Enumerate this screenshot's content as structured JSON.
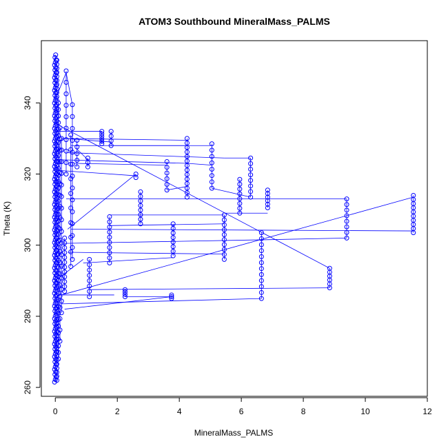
{
  "chart_data": {
    "type": "scatter",
    "title": "ATOM3 Southbound MineralMass_PALMS",
    "xlabel": "MineralMass_PALMS",
    "ylabel": "Theta (K)",
    "xlim": [
      -0.45,
      12.0
    ],
    "ylim": [
      257.5,
      357.5
    ],
    "x_ticks": [
      0,
      2,
      4,
      6,
      8,
      10,
      12
    ],
    "y_ticks": [
      260,
      280,
      300,
      320,
      340
    ],
    "grid": false,
    "series_color": "#0000ff",
    "marker": "open-circle",
    "connected": true,
    "clusters": [
      {
        "x": 0.0,
        "ymin": 261.5,
        "ymax": 353.5,
        "n": 130
      },
      {
        "x": 0.05,
        "ymin": 262.0,
        "ymax": 352.0,
        "n": 80
      },
      {
        "x": 0.1,
        "ymin": 268.0,
        "ymax": 340.0,
        "n": 40
      },
      {
        "x": 0.15,
        "ymin": 273.0,
        "ymax": 333.0,
        "n": 20
      },
      {
        "x": 0.2,
        "ymin": 281.0,
        "ymax": 330.0,
        "n": 16
      },
      {
        "x": 0.3,
        "ymin": 287.0,
        "ymax": 302.0,
        "n": 12
      },
      {
        "x": 0.35,
        "ymin": 320.0,
        "ymax": 349.0,
        "n": 10
      },
      {
        "x": 0.5,
        "ymin": 294.0,
        "ymax": 331.0,
        "n": 10
      },
      {
        "x": 0.55,
        "ymin": 296.0,
        "ymax": 339.5,
        "n": 14
      },
      {
        "x": 0.7,
        "ymin": 322.0,
        "ymax": 329.5,
        "n": 5
      },
      {
        "x": 1.05,
        "ymin": 322.0,
        "ymax": 324.5,
        "n": 3
      },
      {
        "x": 1.1,
        "ymin": 285.5,
        "ymax": 296.0,
        "n": 8
      },
      {
        "x": 1.5,
        "ymin": 328.5,
        "ymax": 332.0,
        "n": 6
      },
      {
        "x": 1.75,
        "ymin": 295.0,
        "ymax": 308.0,
        "n": 10
      },
      {
        "x": 1.8,
        "ymin": 328.0,
        "ymax": 332.0,
        "n": 4
      },
      {
        "x": 2.25,
        "ymin": 285.5,
        "ymax": 287.5,
        "n": 4
      },
      {
        "x": 2.6,
        "ymin": 319.0,
        "ymax": 320.0,
        "n": 2
      },
      {
        "x": 2.75,
        "ymin": 306.0,
        "ymax": 315.0,
        "n": 8
      },
      {
        "x": 3.6,
        "ymin": 315.5,
        "ymax": 323.5,
        "n": 6
      },
      {
        "x": 3.75,
        "ymin": 285.0,
        "ymax": 286.0,
        "n": 3
      },
      {
        "x": 3.8,
        "ymin": 297.0,
        "ymax": 306.0,
        "n": 8
      },
      {
        "x": 4.25,
        "ymin": 313.5,
        "ymax": 330.0,
        "n": 14
      },
      {
        "x": 5.05,
        "ymin": 316.0,
        "ymax": 328.5,
        "n": 8
      },
      {
        "x": 5.45,
        "ymin": 296.0,
        "ymax": 308.5,
        "n": 10
      },
      {
        "x": 5.95,
        "ymin": 309.0,
        "ymax": 318.5,
        "n": 8
      },
      {
        "x": 6.3,
        "ymin": 313.5,
        "ymax": 324.5,
        "n": 8
      },
      {
        "x": 6.65,
        "ymin": 285.0,
        "ymax": 303.5,
        "n": 12
      },
      {
        "x": 6.85,
        "ymin": 310.5,
        "ymax": 315.5,
        "n": 6
      },
      {
        "x": 8.85,
        "ymin": 288.0,
        "ymax": 293.5,
        "n": 6
      },
      {
        "x": 9.4,
        "ymin": 302.0,
        "ymax": 313.0,
        "n": 8
      },
      {
        "x": 11.55,
        "ymin": 303.5,
        "ymax": 314.0,
        "n": 10
      }
    ],
    "connections": [
      [
        [
          0.0,
          341.0
        ],
        [
          0.35,
          348.5
        ]
      ],
      [
        [
          0.35,
          348.5
        ],
        [
          0.55,
          339.5
        ]
      ],
      [
        [
          0.05,
          334.0
        ],
        [
          8.85,
          293.5
        ]
      ],
      [
        [
          0.1,
          332.0
        ],
        [
          1.5,
          332.0
        ]
      ],
      [
        [
          0.2,
          330.0
        ],
        [
          4.25,
          329.5
        ]
      ],
      [
        [
          0.3,
          330.0
        ],
        [
          1.8,
          329.0
        ]
      ],
      [
        [
          0.5,
          328.0
        ],
        [
          5.05,
          328.0
        ]
      ],
      [
        [
          0.7,
          327.0
        ],
        [
          1.05,
          324.0
        ]
      ],
      [
        [
          0.4,
          326.0
        ],
        [
          5.45,
          324.5
        ]
      ],
      [
        [
          5.45,
          324.5
        ],
        [
          6.3,
          324.5
        ]
      ],
      [
        [
          0.2,
          324.0
        ],
        [
          4.25,
          323.0
        ]
      ],
      [
        [
          4.25,
          323.0
        ],
        [
          5.05,
          322.5
        ]
      ],
      [
        [
          0.6,
          323.0
        ],
        [
          3.6,
          322.5
        ]
      ],
      [
        [
          0.15,
          321.0
        ],
        [
          2.6,
          319.5
        ]
      ],
      [
        [
          0.4,
          304.5
        ],
        [
          2.6,
          320.0
        ]
      ],
      [
        [
          1.75,
          328.0
        ],
        [
          4.25,
          328.0
        ]
      ],
      [
        [
          3.6,
          315.5
        ],
        [
          4.25,
          316.5
        ]
      ],
      [
        [
          5.05,
          316.0
        ],
        [
          6.3,
          313.5
        ]
      ],
      [
        [
          0.35,
          313.0
        ],
        [
          6.85,
          313.0
        ]
      ],
      [
        [
          6.85,
          313.0
        ],
        [
          9.4,
          313.0
        ]
      ],
      [
        [
          5.45,
          309.0
        ],
        [
          6.85,
          309.0
        ]
      ],
      [
        [
          1.75,
          308.5
        ],
        [
          5.45,
          308.5
        ]
      ],
      [
        [
          1.75,
          305.5
        ],
        [
          5.45,
          306.0
        ]
      ],
      [
        [
          0.5,
          304.5
        ],
        [
          11.55,
          304.0
        ]
      ],
      [
        [
          0.3,
          300.5
        ],
        [
          6.65,
          301.5
        ]
      ],
      [
        [
          6.65,
          301.5
        ],
        [
          9.4,
          302.0
        ]
      ],
      [
        [
          0.4,
          298.0
        ],
        [
          5.45,
          297.5
        ]
      ],
      [
        [
          0.9,
          295.0
        ],
        [
          3.8,
          296.5
        ]
      ],
      [
        [
          0.2,
          286.0
        ],
        [
          11.55,
          313.5
        ]
      ],
      [
        [
          1.1,
          287.5
        ],
        [
          8.85,
          288.0
        ]
      ],
      [
        [
          0.15,
          286.0
        ],
        [
          1.9,
          286.0
        ]
      ],
      [
        [
          2.25,
          285.5
        ],
        [
          3.75,
          285.5
        ]
      ],
      [
        [
          0.2,
          283.5
        ],
        [
          6.65,
          285.0
        ]
      ],
      [
        [
          0.3,
          282.0
        ],
        [
          3.75,
          285.5
        ]
      ],
      [
        [
          0.0,
          290.0
        ],
        [
          0.9,
          296.0
        ]
      ]
    ]
  }
}
